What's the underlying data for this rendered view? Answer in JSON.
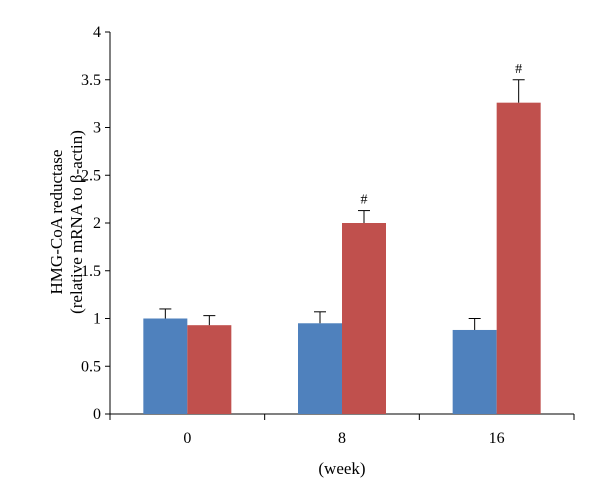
{
  "chart_data": {
    "type": "bar",
    "title": "",
    "xlabel": "(week)",
    "ylabel_lines": [
      "HMG-CoA reductase",
      "(relative mRNA to β-actin)"
    ],
    "categories": [
      "0",
      "8",
      "16"
    ],
    "ylim": [
      0,
      4
    ],
    "yticks": [
      "0",
      "0.5",
      "1",
      "1.5",
      "2",
      "2.5",
      "3",
      "3.5",
      "4"
    ],
    "grid": false,
    "legend": "none",
    "series": [
      {
        "color": "#4f81bd",
        "values": [
          1.0,
          0.95,
          0.88
        ],
        "errors": [
          0.1,
          0.12,
          0.12
        ],
        "annotations": [
          "",
          "",
          ""
        ]
      },
      {
        "color": "#c0504d",
        "values": [
          0.93,
          2.0,
          3.26
        ],
        "errors": [
          0.1,
          0.13,
          0.24
        ],
        "annotations": [
          "",
          "#",
          "#"
        ]
      }
    ]
  }
}
